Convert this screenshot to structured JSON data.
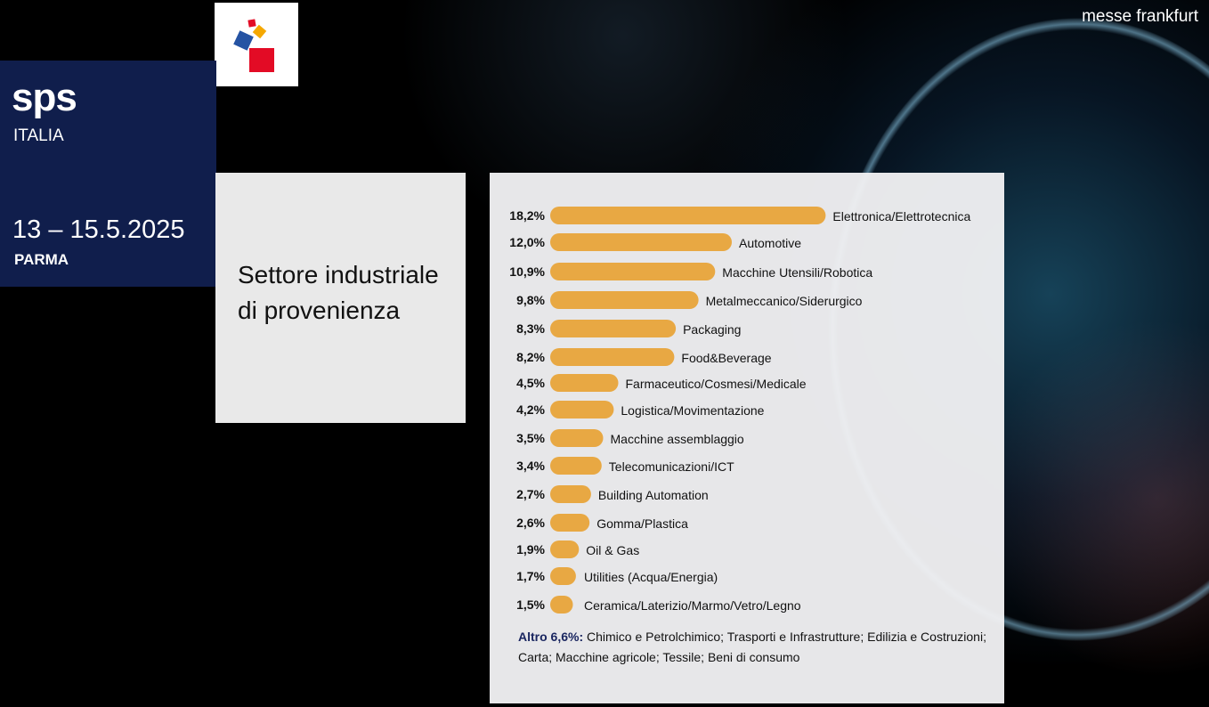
{
  "brand": "messe frankfurt",
  "event": {
    "name": "sps",
    "country": "ITALIA",
    "dates": "13 – 15.5.2025",
    "city": "PARMA"
  },
  "title": "Settore industriale di provenienza",
  "colors": {
    "bar": "#e8a843",
    "navy": "#101e4c"
  },
  "chart_data": {
    "type": "bar",
    "orientation": "horizontal",
    "title": "Settore industriale di provenienza",
    "categories": [
      "Elettronica/Elettrotecnica",
      "Automotive",
      "Macchine Utensili/Robotica",
      "Metalmeccanico/Siderurgico",
      "Packaging",
      "Food&Beverage",
      "Farmaceutico/Cosmesi/Medicale",
      "Logistica/Movimentazione",
      "Macchine assemblaggio",
      "Telecomunicazioni/ICT",
      "Building Automation",
      "Gomma/Plastica",
      "Oil & Gas",
      "Utilities (Acqua/Energia)",
      "Ceramica/Laterizio/Marmo/Vetro/Legno"
    ],
    "values": [
      18.2,
      12.0,
      10.9,
      9.8,
      8.3,
      8.2,
      4.5,
      4.2,
      3.5,
      3.4,
      2.7,
      2.6,
      1.9,
      1.7,
      1.5
    ],
    "value_labels": [
      "18,2%",
      "12,0%",
      "10,9%",
      "9,8%",
      "8,3%",
      "8,2%",
      "4,5%",
      "4,2%",
      "3,5%",
      "3,4%",
      "2,7%",
      "2,6%",
      "1,9%",
      "1,7%",
      "1,5%"
    ],
    "unit": "%"
  },
  "note": {
    "label": "Altro 6,6%:",
    "text": " Chimico e Petrolchimico; Trasporti e Infrastrutture; Edilizia e Costruzioni; Carta; Macchine agricole; Tessile; Beni di consumo"
  }
}
